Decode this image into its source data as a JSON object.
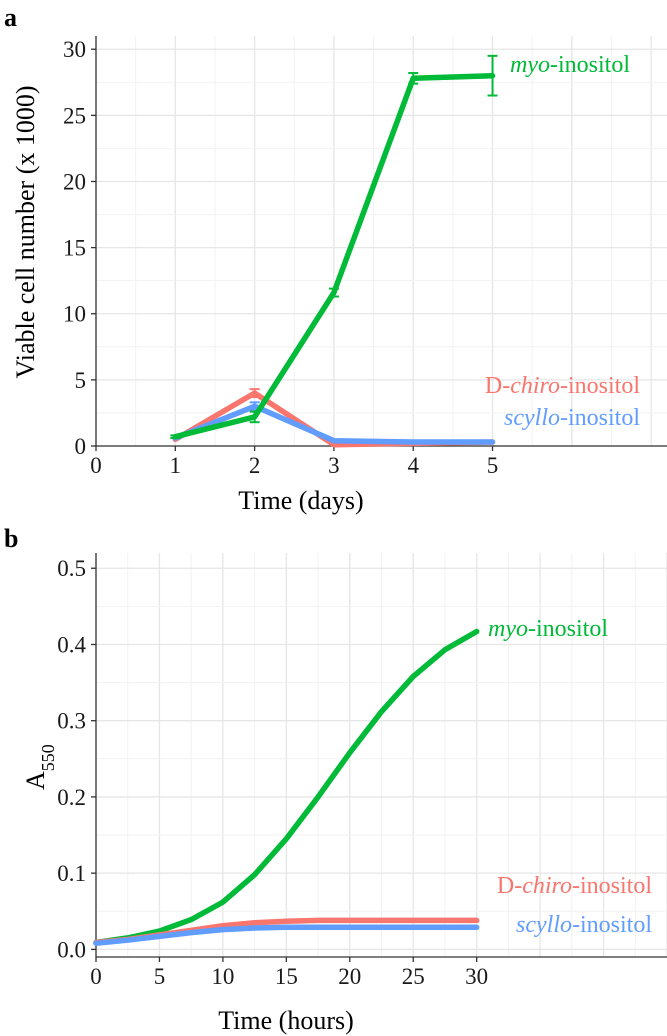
{
  "chart_data": [
    {
      "panel_label": "a",
      "type": "line",
      "xlabel": "Time (days)",
      "ylabel": "Viable cell number (x 1000)",
      "xlim": [
        0,
        7.2
      ],
      "ylim": [
        0,
        31
      ],
      "xticks": [
        0,
        1,
        2,
        3,
        4,
        5
      ],
      "yticks": [
        0,
        5,
        10,
        15,
        20,
        25,
        30
      ],
      "grid": true,
      "series": [
        {
          "name_pre": "D-",
          "name_italic": "chiro",
          "name_post": "-inositol",
          "color": "#F8766D",
          "x": [
            1,
            2,
            3,
            4,
            5
          ],
          "y": [
            0.5,
            4.0,
            0.1,
            0.2,
            0.3
          ],
          "err": [
            0,
            0.3,
            0,
            0,
            0
          ]
        },
        {
          "name_pre": "",
          "name_italic": "scyllo",
          "name_post": "-inositol",
          "color": "#619CFF",
          "x": [
            1,
            2,
            3,
            4,
            5
          ],
          "y": [
            0.6,
            3.0,
            0.4,
            0.3,
            0.3
          ],
          "err": [
            0,
            0.3,
            0,
            0,
            0
          ]
        },
        {
          "name_pre": "",
          "name_italic": "myo",
          "name_post": "-inositol",
          "color": "#00BA38",
          "x": [
            1,
            2,
            3,
            4,
            5
          ],
          "y": [
            0.7,
            2.2,
            11.6,
            27.8,
            28.0
          ],
          "err": [
            0.1,
            0.4,
            0.3,
            0.4,
            1.5
          ]
        }
      ]
    },
    {
      "panel_label": "b",
      "type": "line",
      "xlabel": "Time (hours)",
      "ylabel": "A",
      "ylabel_sub": "550",
      "xlim": [
        0,
        45
      ],
      "ylim": [
        -0.01,
        0.52
      ],
      "xticks": [
        0,
        5,
        10,
        15,
        20,
        25,
        30
      ],
      "yticks": [
        "0.0",
        "0.1",
        "0.2",
        "0.3",
        "0.4",
        "0.5"
      ],
      "grid": true,
      "series": [
        {
          "name_pre": "",
          "name_italic": "myo",
          "name_post": "-inositol",
          "color": "#00BA38",
          "x": [
            0,
            2.5,
            5,
            7.5,
            10,
            12.5,
            15,
            17.5,
            20,
            22.5,
            25,
            27.5,
            30
          ],
          "y": [
            0.009,
            0.015,
            0.024,
            0.039,
            0.062,
            0.098,
            0.145,
            0.2,
            0.258,
            0.312,
            0.358,
            0.393,
            0.417
          ]
        },
        {
          "name_pre": "D-",
          "name_italic": "chiro",
          "name_post": "-inositol",
          "color": "#F8766D",
          "x": [
            0,
            2.5,
            5,
            7.5,
            10,
            12.5,
            15,
            17.5,
            20,
            22.5,
            25,
            27.5,
            30
          ],
          "y": [
            0.009,
            0.013,
            0.019,
            0.025,
            0.031,
            0.035,
            0.037,
            0.038,
            0.038,
            0.038,
            0.038,
            0.038,
            0.038
          ]
        },
        {
          "name_pre": "",
          "name_italic": "scyllo",
          "name_post": "-inositol",
          "color": "#619CFF",
          "x": [
            0,
            2.5,
            5,
            7.5,
            10,
            12.5,
            15,
            17.5,
            20,
            22.5,
            25,
            27.5,
            30
          ],
          "y": [
            0.008,
            0.012,
            0.017,
            0.022,
            0.026,
            0.028,
            0.029,
            0.029,
            0.029,
            0.029,
            0.029,
            0.029,
            0.029
          ]
        }
      ]
    }
  ]
}
